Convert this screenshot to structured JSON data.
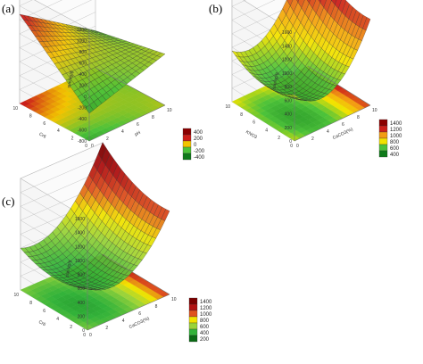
{
  "figure": {
    "panels": [
      "(a)",
      "(b)",
      "(c)"
    ]
  },
  "colors": {
    "grid": "#b8b8b8",
    "mesh": "#2a2a2a"
  },
  "chart_data": [
    {
      "type": "surface",
      "panel": "(a)",
      "zlabel": "sue/ug/g",
      "xlabel": "pH",
      "ylabel": "Cr6",
      "zticks": [
        "1200",
        "1000",
        "800",
        "600",
        "400",
        "200",
        "0",
        "-200",
        "-400",
        "-600",
        "-800"
      ],
      "xticks": [
        "0",
        "2",
        "4",
        "6",
        "8",
        "10"
      ],
      "yticks": [
        "0",
        "2",
        "4",
        "6",
        "8",
        "10"
      ],
      "legend": [
        {
          "label": "400",
          "color": "#8b0000"
        },
        {
          "label": "200",
          "color": "#cc1f1a"
        },
        {
          "label": "0",
          "color": "#f2c400"
        },
        {
          "label": "-200",
          "color": "#4cc23a"
        },
        {
          "label": "-400",
          "color": "#0f7a1a"
        }
      ]
    },
    {
      "type": "surface",
      "panel": "(b)",
      "zlabel": "sue/ug/g",
      "xlabel": "CaCO3(%)",
      "ylabel": "KNO3",
      "zticks": [
        "1600",
        "1400",
        "1200",
        "1000",
        "800",
        "600",
        "400",
        "200",
        "0"
      ],
      "xticks": [
        "0",
        "2",
        "4",
        "6",
        "8",
        "10"
      ],
      "yticks": [
        "0",
        "2",
        "4",
        "6",
        "8",
        "10"
      ],
      "legend": [
        {
          "label": "1400",
          "color": "#8b0000"
        },
        {
          "label": "1200",
          "color": "#cc1f1a"
        },
        {
          "label": "1000",
          "color": "#f39c12"
        },
        {
          "label": "800",
          "color": "#f2e300"
        },
        {
          "label": "600",
          "color": "#4cc23a"
        },
        {
          "label": "400",
          "color": "#0f7a1a"
        }
      ]
    },
    {
      "type": "surface",
      "panel": "(c)",
      "zlabel": "sue/ug/g",
      "xlabel": "CaCO3(%)",
      "ylabel": "Cr6",
      "zticks": [
        "1600",
        "1400",
        "1200",
        "1000",
        "800",
        "600",
        "400",
        "200",
        "0"
      ],
      "xticks": [
        "0",
        "2",
        "4",
        "6",
        "8",
        "10"
      ],
      "yticks": [
        "0",
        "2",
        "4",
        "6",
        "8",
        "10"
      ],
      "legend": [
        {
          "label": "1400",
          "color": "#7a0000"
        },
        {
          "label": "1200",
          "color": "#b11212"
        },
        {
          "label": "1000",
          "color": "#e0531e"
        },
        {
          "label": "800",
          "color": "#f2e300"
        },
        {
          "label": "600",
          "color": "#9ad33a"
        },
        {
          "label": "400",
          "color": "#33b33a"
        },
        {
          "label": "200",
          "color": "#0b6a15"
        }
      ]
    }
  ]
}
